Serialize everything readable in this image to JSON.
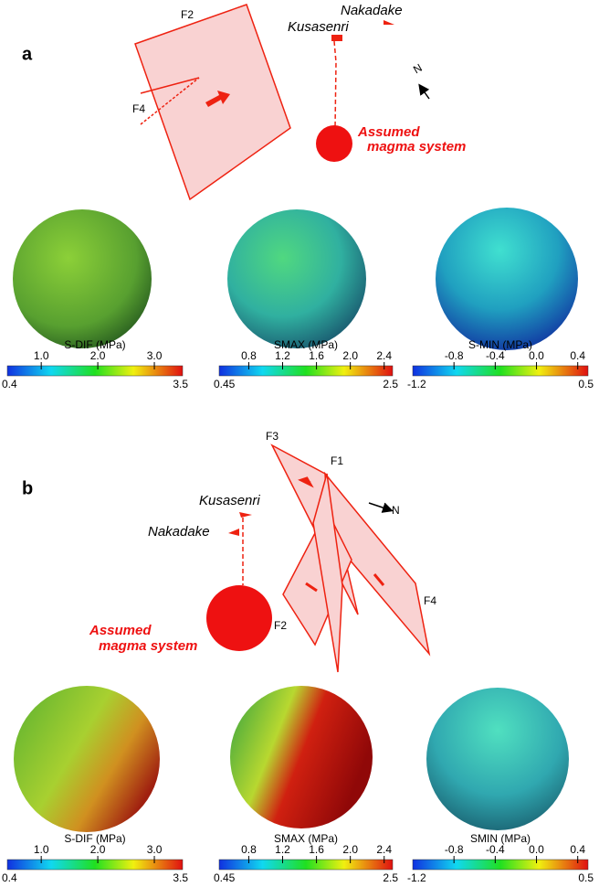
{
  "panel_a": {
    "label": "a",
    "faults": [
      "F2",
      "F4"
    ],
    "places": [
      "Kusasenri",
      "Nakadake"
    ],
    "magma": [
      "Assumed",
      "magma system"
    ],
    "north": "N",
    "colorbars": [
      {
        "title": "S-DIF (MPa)",
        "ticks": [
          "1.0",
          "2.0",
          "3.0"
        ],
        "min": "0.4",
        "max": "3.5"
      },
      {
        "title": "SMAX (MPa)",
        "ticks": [
          "0.8",
          "1.2",
          "1.6",
          "2.0",
          "2.4"
        ],
        "min": "0.45",
        "max": "2.5"
      },
      {
        "title": "S-MIN (MPa)",
        "ticks": [
          "-0.8",
          "-0.4",
          "0.0",
          "0.4"
        ],
        "min": "-1.2",
        "max": "0.5"
      }
    ]
  },
  "panel_b": {
    "label": "b",
    "faults": [
      "F3",
      "F1",
      "F2",
      "F4"
    ],
    "places": [
      "Kusasenri",
      "Nakadake"
    ],
    "magma": [
      "Assumed",
      "magma system"
    ],
    "north": "N",
    "colorbars": [
      {
        "title": "S-DIF (MPa)",
        "ticks": [
          "1.0",
          "2.0",
          "3.0"
        ],
        "min": "0.4",
        "max": "3.5"
      },
      {
        "title": "SMAX (MPa)",
        "ticks": [
          "0.8",
          "1.2",
          "1.6",
          "2.0",
          "2.4"
        ],
        "min": "0.45",
        "max": "2.5"
      },
      {
        "title": "SMIN (MPa)",
        "ticks": [
          "-0.8",
          "-0.4",
          "0.0",
          "0.4"
        ],
        "min": "-1.2",
        "max": "0.5"
      }
    ]
  }
}
